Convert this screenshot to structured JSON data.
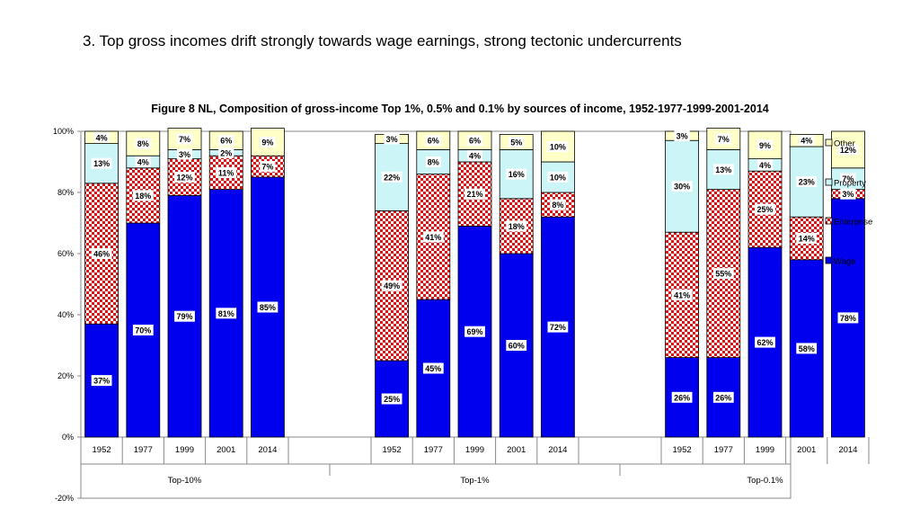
{
  "slide_title": "3. Top gross incomes drift strongly towards wage earnings, strong tectonic undercurrents",
  "chart_data": {
    "type": "bar",
    "stacked": true,
    "title": "Figure 8  NL, Composition of gross-income Top 1%, 0.5% and 0.1% by sources of income, 1952-1977-1999-2001-2014",
    "ylim": [
      -20,
      100
    ],
    "yticks": [
      "-20%",
      "0%",
      "20%",
      "40%",
      "60%",
      "80%",
      "100%"
    ],
    "groups": [
      {
        "name": "Top-10%",
        "categories": [
          "1952",
          "1977",
          "1999",
          "2001",
          "2014"
        ]
      },
      {
        "name": "Top-1%",
        "categories": [
          "1952",
          "1977",
          "1999",
          "2001",
          "2014"
        ]
      },
      {
        "name": "Top-0.1%",
        "categories": [
          "1952",
          "1977",
          "1999",
          "2001",
          "2014"
        ]
      }
    ],
    "series": [
      {
        "name": "Wage",
        "color": "#0000ee",
        "values": [
          [
            37,
            70,
            79,
            81,
            85
          ],
          [
            25,
            45,
            69,
            60,
            72
          ],
          [
            26,
            26,
            62,
            58,
            78
          ]
        ],
        "labels": [
          [
            "37%",
            "70%",
            "79%",
            "81%",
            "85%"
          ],
          [
            "25%",
            "45%",
            "69%",
            "60%",
            "72%"
          ],
          [
            "26%",
            "26%",
            "62%",
            "58%",
            "78%"
          ]
        ]
      },
      {
        "name": "Enterprise",
        "color": "#dd1111",
        "pattern": "checker",
        "values": [
          [
            46,
            18,
            12,
            11,
            7
          ],
          [
            49,
            41,
            21,
            18,
            8
          ],
          [
            41,
            55,
            25,
            14,
            3
          ]
        ],
        "labels": [
          [
            "46%",
            "18%",
            "12%",
            "11%",
            "7%"
          ],
          [
            "49%",
            "41%",
            "21%",
            "18%",
            "8%"
          ],
          [
            "41%",
            "55%",
            "25%",
            "14%",
            "3%"
          ]
        ]
      },
      {
        "name": "Property",
        "color": "#ccf5f8",
        "values": [
          [
            13,
            4,
            3,
            2,
            0
          ],
          [
            22,
            8,
            4,
            16,
            10
          ],
          [
            30,
            13,
            4,
            23,
            7
          ]
        ],
        "labels": [
          [
            "13%",
            "4%",
            "3%",
            "2%",
            ""
          ],
          [
            "22%",
            "8%",
            "4%",
            "16%",
            "10%"
          ],
          [
            "30%",
            "13%",
            "4%",
            "23%",
            "7%"
          ]
        ]
      },
      {
        "name": "Other",
        "color": "#ffffc8",
        "values": [
          [
            4,
            8,
            7,
            6,
            9
          ],
          [
            3,
            6,
            6,
            5,
            10
          ],
          [
            3,
            7,
            9,
            4,
            12
          ]
        ],
        "labels": [
          [
            "4%",
            "8%",
            "7%",
            "6%",
            "9%"
          ],
          [
            "3%",
            "6%",
            "6%",
            "5%",
            "10%"
          ],
          [
            "3%",
            "7%",
            "9%",
            "4%",
            "12%"
          ]
        ]
      }
    ],
    "legend": [
      "Other",
      "Property",
      "Enterprise",
      "Wage"
    ],
    "legend_position": "right",
    "grid": false
  }
}
